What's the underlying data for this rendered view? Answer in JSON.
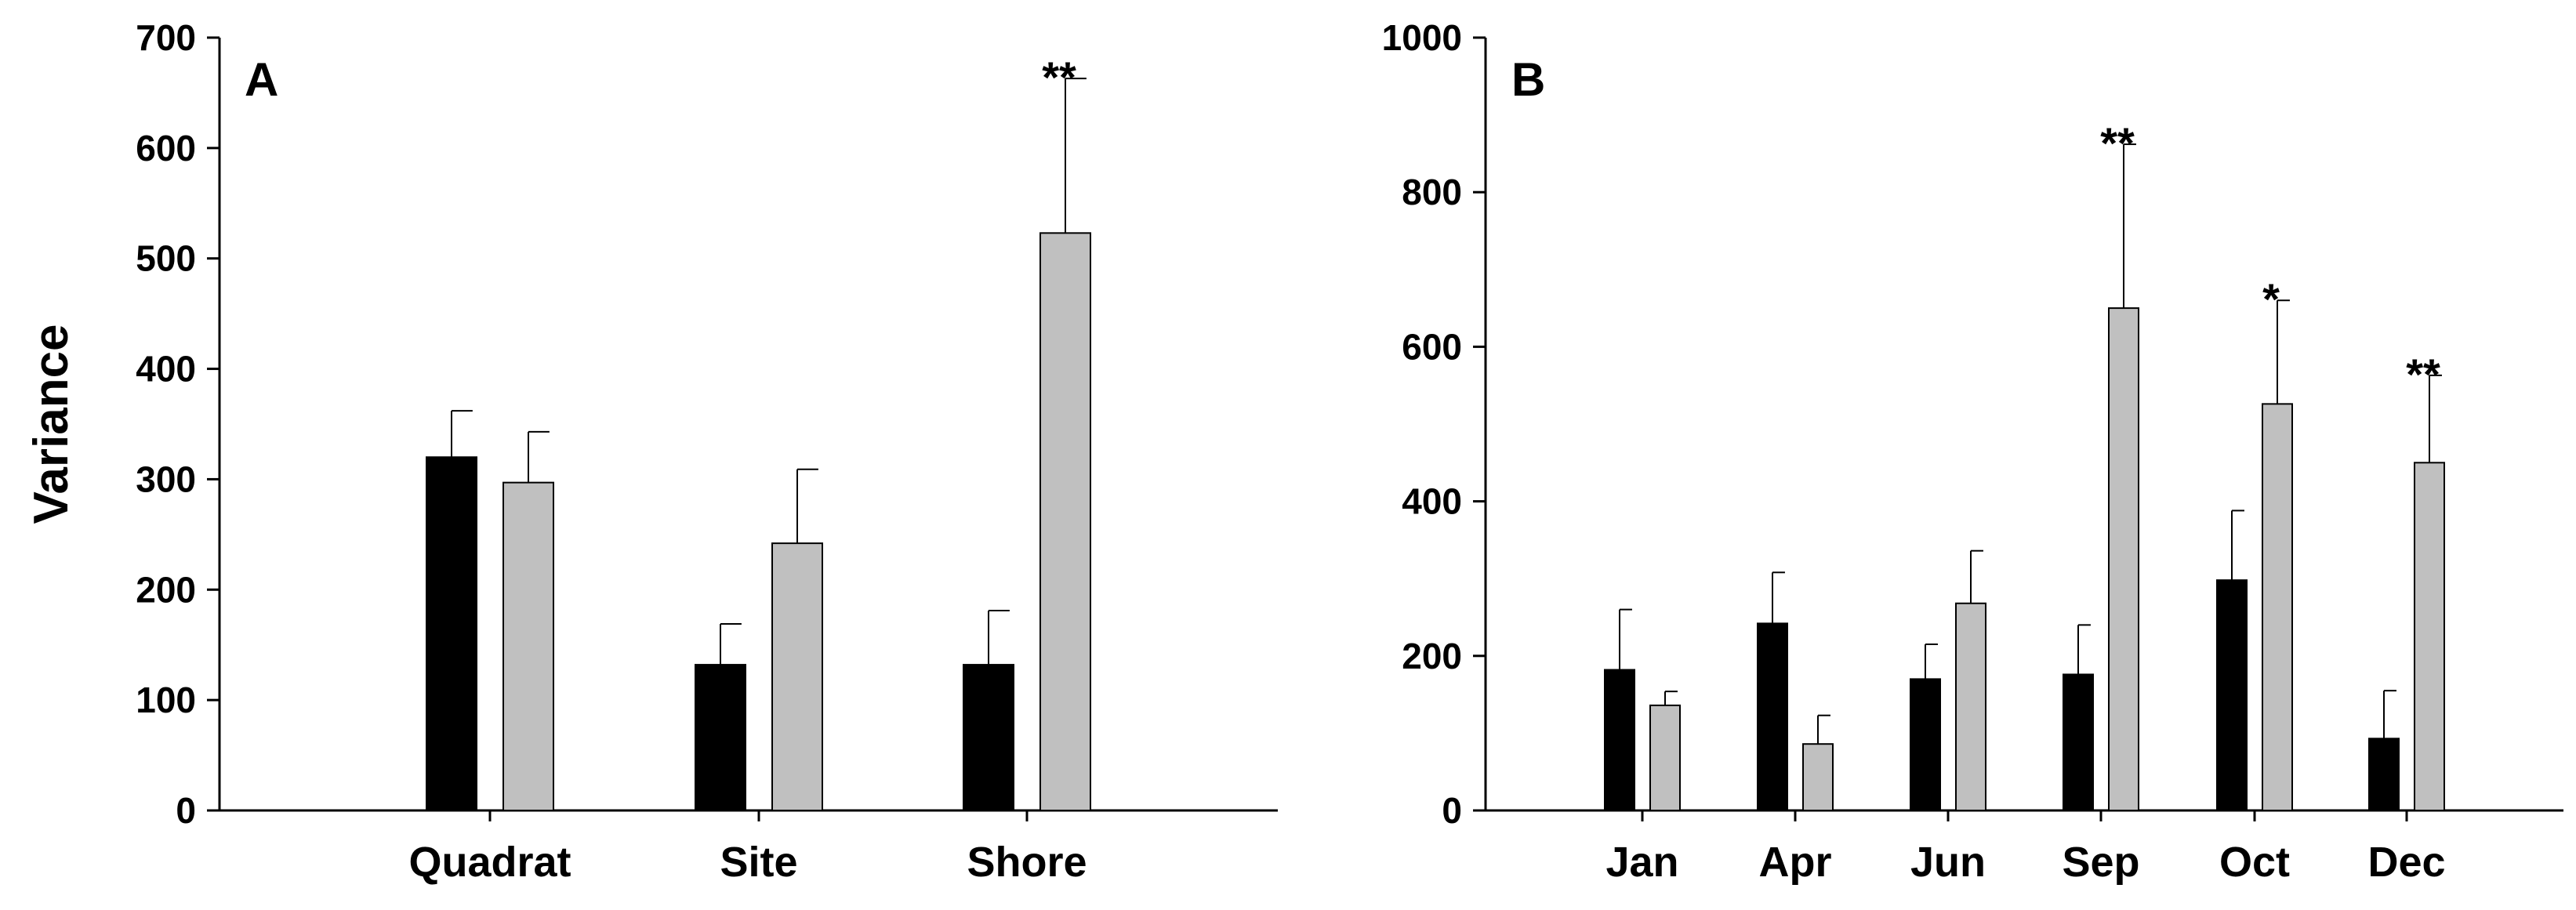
{
  "chart_data": [
    {
      "type": "bar",
      "panel_label": "A",
      "ylabel": "Variance",
      "xlabel": "",
      "ylim": [
        0,
        700
      ],
      "yticks": [
        0,
        100,
        200,
        300,
        400,
        500,
        600,
        700
      ],
      "categories": [
        "Quadrat",
        "Site",
        "Shore"
      ],
      "series": [
        {
          "color": "#000000",
          "values": [
            320,
            132,
            132
          ],
          "errors": [
            42,
            37,
            49
          ]
        },
        {
          "color": "#c0c0c0",
          "values": [
            297,
            242,
            523
          ],
          "errors": [
            46,
            67,
            140
          ]
        }
      ],
      "annotations": [
        {
          "category": "Shore",
          "text": "**"
        }
      ],
      "grid": false
    },
    {
      "type": "bar",
      "panel_label": "B",
      "ylabel": "",
      "xlabel": "",
      "ylim": [
        0,
        1000
      ],
      "yticks": [
        0,
        200,
        400,
        600,
        800,
        1000
      ],
      "categories": [
        "Jan",
        "Apr",
        "Jun",
        "Sep",
        "Oct",
        "Dec"
      ],
      "series": [
        {
          "color": "#000000",
          "values": [
            182,
            242,
            170,
            176,
            298,
            93
          ],
          "errors": [
            78,
            66,
            45,
            64,
            90,
            62
          ]
        },
        {
          "color": "#c0c0c0",
          "values": [
            136,
            86,
            268,
            650,
            526,
            450
          ],
          "errors": [
            18,
            37,
            68,
            212,
            134,
            113
          ]
        }
      ],
      "annotations": [
        {
          "category": "Sep",
          "text": "**"
        },
        {
          "category": "Oct",
          "text": "*"
        },
        {
          "category": "Dec",
          "text": "**"
        }
      ],
      "grid": false
    }
  ]
}
